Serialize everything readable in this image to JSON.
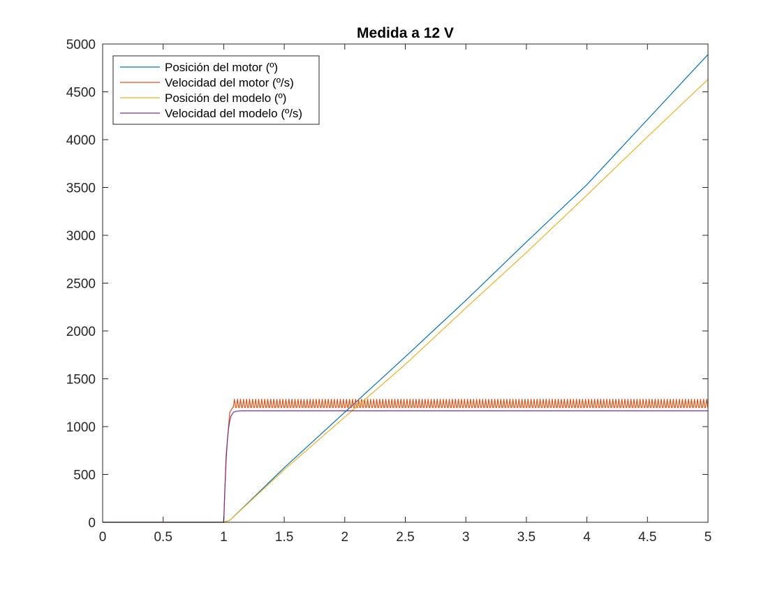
{
  "chart_data": {
    "type": "line",
    "title": "Medida a 12 V",
    "xlabel": "",
    "ylabel": "",
    "xlim": [
      0,
      5
    ],
    "ylim": [
      0,
      5000
    ],
    "xticks": [
      0,
      0.5,
      1,
      1.5,
      2,
      2.5,
      3,
      3.5,
      4,
      4.5,
      5
    ],
    "xtick_labels": [
      "0",
      "0.5",
      "1",
      "1.5",
      "2",
      "2.5",
      "3",
      "3.5",
      "4",
      "4.5",
      "5"
    ],
    "yticks": [
      0,
      500,
      1000,
      1500,
      2000,
      2500,
      3000,
      3500,
      4000,
      4500,
      5000
    ],
    "ytick_labels": [
      "0",
      "500",
      "1000",
      "1500",
      "2000",
      "2500",
      "3000",
      "3500",
      "4000",
      "4500",
      "5000"
    ],
    "grid": false,
    "legend_position": "top-left",
    "series": [
      {
        "name": "Posición del motor (º)",
        "color": "#0072BD",
        "x": [
          0,
          1.0,
          1.05,
          1.5,
          2.0,
          2.5,
          3.0,
          3.5,
          4.0,
          4.5,
          5.0
        ],
        "y": [
          0,
          0,
          20,
          570,
          1150,
          1730,
          2320,
          2930,
          3530,
          4210,
          4890
        ]
      },
      {
        "name": "Velocidad del motor (º/s)",
        "color": "#D95319",
        "pattern": "step-ripple",
        "x": [
          0,
          1.0,
          1.02,
          1.05,
          1.08,
          5.0
        ],
        "y": [
          0,
          0,
          700,
          1150,
          1210,
          1210
        ],
        "ripple": {
          "low": 1200,
          "high": 1290,
          "start": 1.08,
          "end": 5.0,
          "period": 0.025
        }
      },
      {
        "name": "Posición del modelo (º)",
        "color": "#EDB120",
        "x": [
          0,
          1.0,
          1.05,
          1.5,
          2.0,
          2.5,
          3.0,
          3.5,
          4.0,
          4.5,
          5.0
        ],
        "y": [
          0,
          0,
          20,
          550,
          1100,
          1650,
          2240,
          2820,
          3420,
          4030,
          4630
        ]
      },
      {
        "name": "Velocidad del modelo (º/s)",
        "color": "#7E2F8E",
        "x": [
          0,
          1.0,
          1.01,
          1.02,
          1.03,
          1.04,
          1.05,
          1.06,
          1.08,
          1.1,
          1.15,
          5.0
        ],
        "y": [
          0,
          0,
          360,
          650,
          850,
          980,
          1060,
          1110,
          1150,
          1160,
          1165,
          1165
        ]
      }
    ]
  }
}
